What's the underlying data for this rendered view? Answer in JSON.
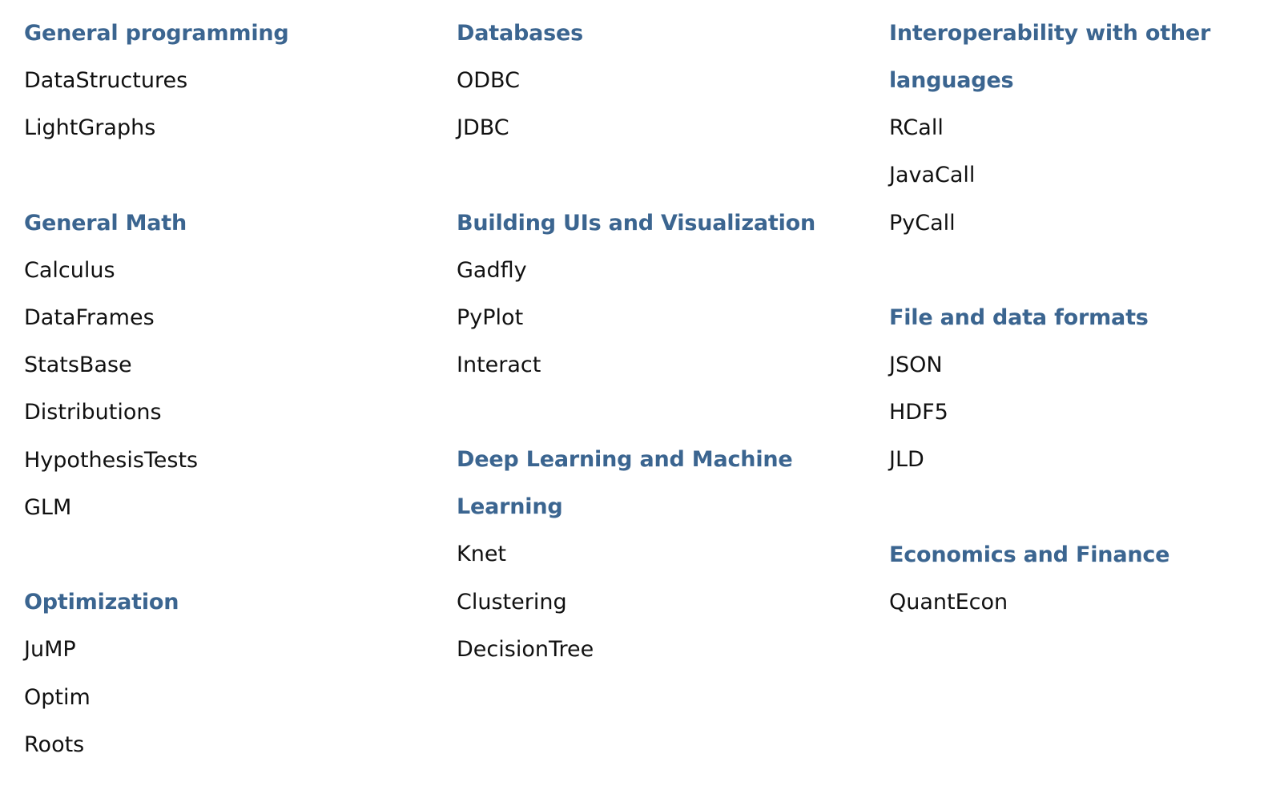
{
  "columns": [
    {
      "sections": [
        {
          "title": "General programming",
          "items": [
            "DataStructures",
            "LightGraphs"
          ]
        },
        {
          "title": "General Math",
          "items": [
            "Calculus",
            "DataFrames",
            "StatsBase",
            "Distributions",
            "HypothesisTests",
            "GLM"
          ]
        },
        {
          "title": "Optimization",
          "items": [
            "JuMP",
            "Optim",
            "Roots"
          ]
        }
      ]
    },
    {
      "sections": [
        {
          "title": "Databases",
          "items": [
            "ODBC",
            "JDBC"
          ]
        },
        {
          "title": "Building UIs and Visualization",
          "items": [
            "Gadfly",
            "PyPlot",
            "Interact"
          ]
        },
        {
          "title": "Deep Learning and Machine Learning",
          "items": [
            "Knet",
            "Clustering",
            "DecisionTree"
          ]
        }
      ]
    },
    {
      "sections": [
        {
          "title": "Interoperability with other languages",
          "items": [
            "RCall",
            "JavaCall",
            "PyCall"
          ]
        },
        {
          "title": "File and data formats",
          "items": [
            "JSON",
            "HDF5",
            "JLD"
          ]
        },
        {
          "title": "Economics and Finance",
          "items": [
            "QuantEcon"
          ]
        }
      ]
    }
  ]
}
